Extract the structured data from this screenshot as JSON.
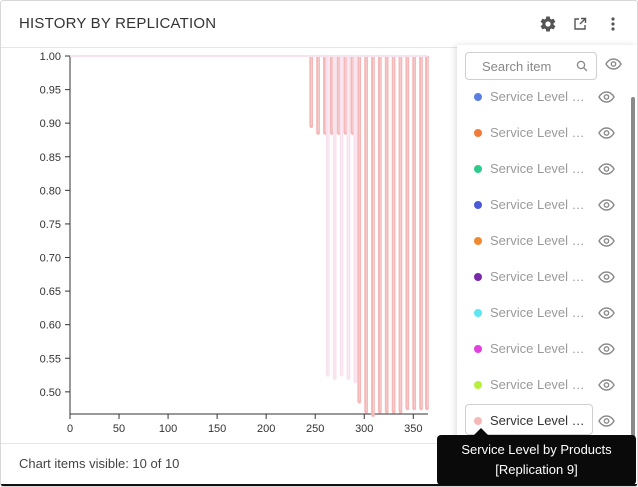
{
  "panel": {
    "title": "HISTORY BY REPLICATION",
    "footer_text": "Chart items visible: 10 of 10"
  },
  "header_icons": [
    "gear-icon",
    "expand-icon",
    "more-vertical-icon"
  ],
  "legend": {
    "search_placeholder": "Search item",
    "items": [
      {
        "label": "Service Level b...",
        "color": "#5b7fe0"
      },
      {
        "label": "Service Level b...",
        "color": "#f07b3a"
      },
      {
        "label": "Service Level b...",
        "color": "#2ecb8a"
      },
      {
        "label": "Service Level b...",
        "color": "#4a5ad8"
      },
      {
        "label": "Service Level b...",
        "color": "#f08a30"
      },
      {
        "label": "Service Level b...",
        "color": "#7a2aa8"
      },
      {
        "label": "Service Level b...",
        "color": "#5ee6f0"
      },
      {
        "label": "Service Level b...",
        "color": "#e23ee0"
      },
      {
        "label": "Service Level b...",
        "color": "#b8f040"
      },
      {
        "label": "Service Level b...",
        "color": "#f4b8b8"
      }
    ]
  },
  "tooltip": {
    "line1": "Service Level by Products",
    "line2": "[Replication 9]"
  },
  "chart_data": {
    "type": "line",
    "xlim": [
      0,
      365
    ],
    "ylim": [
      0.47,
      1.0
    ],
    "x_ticks": [
      "0",
      "50",
      "100",
      "150",
      "200",
      "250",
      "300",
      "350"
    ],
    "y_ticks": [
      "1.00",
      "0.95",
      "0.90",
      "0.85",
      "0.80",
      "0.75",
      "0.70",
      "0.65",
      "0.60",
      "0.55",
      "0.50"
    ],
    "series": [
      {
        "color": "#f4b8b8",
        "baseline": 1.0,
        "dips": [
          {
            "x": 245,
            "y": 0.895
          },
          {
            "x": 252,
            "y": 0.885
          },
          {
            "x": 259,
            "y": 0.885
          },
          {
            "x": 266,
            "y": 0.885
          },
          {
            "x": 273,
            "y": 0.885
          },
          {
            "x": 280,
            "y": 0.885
          },
          {
            "x": 287,
            "y": 0.885
          },
          {
            "x": 294,
            "y": 0.485
          },
          {
            "x": 301,
            "y": 0.47
          },
          {
            "x": 308,
            "y": 0.465
          },
          {
            "x": 315,
            "y": 0.47
          },
          {
            "x": 322,
            "y": 0.47
          },
          {
            "x": 329,
            "y": 0.47
          },
          {
            "x": 336,
            "y": 0.47
          },
          {
            "x": 343,
            "y": 0.475
          },
          {
            "x": 350,
            "y": 0.475
          },
          {
            "x": 357,
            "y": 0.475
          },
          {
            "x": 363,
            "y": 0.475
          }
        ]
      },
      {
        "color": "#f8e2ee",
        "baseline": 1.0,
        "dips": [
          {
            "x": 262,
            "y": 0.525
          },
          {
            "x": 269,
            "y": 0.52
          },
          {
            "x": 276,
            "y": 0.525
          },
          {
            "x": 283,
            "y": 0.52
          },
          {
            "x": 290,
            "y": 0.515
          }
        ]
      }
    ]
  }
}
